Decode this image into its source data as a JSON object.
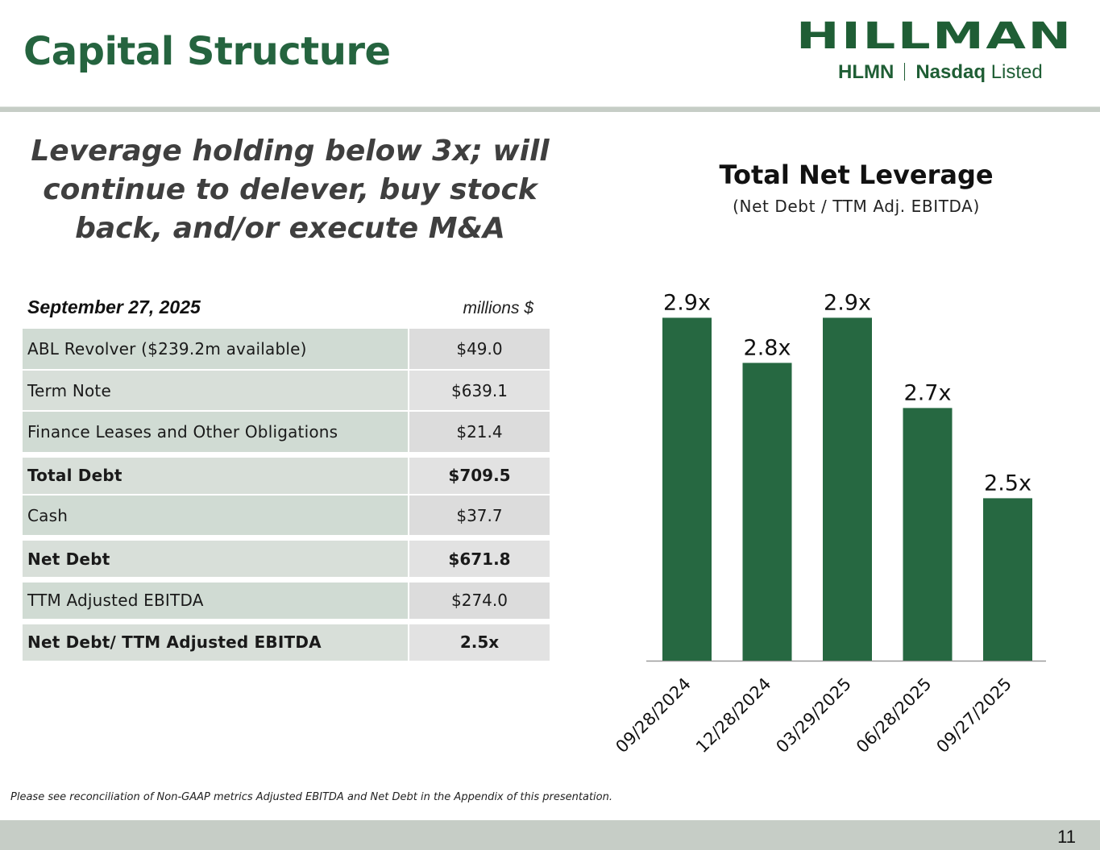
{
  "header": {
    "title": "Capital Structure",
    "logo": {
      "wordmark": "HILLMAN",
      "ticker": "HLMN",
      "exchange": "Nasdaq",
      "exchange_suffix": "Listed"
    }
  },
  "headline": "Leverage holding below 3x; will continue to delever, buy stock back, and/or execute M&A",
  "capital_table": {
    "date": "September 27, 2025",
    "units": "millions $",
    "rows": [
      {
        "label": "ABL Revolver ($239.2m available)",
        "value": "$49.0",
        "bold": false
      },
      {
        "label": "Term Note",
        "value": "$639.1",
        "bold": false
      },
      {
        "label": "Finance Leases and Other Obligations",
        "value": "$21.4",
        "bold": false
      },
      {
        "label": "Total Debt",
        "value": "$709.5",
        "bold": true
      },
      {
        "label": "Cash",
        "value": "$37.7",
        "bold": false
      },
      {
        "label": "Net Debt",
        "value": "$671.8",
        "bold": true
      },
      {
        "label": "TTM Adjusted EBITDA",
        "value": "$274.0",
        "bold": false
      },
      {
        "label": "Net Debt/ TTM Adjusted EBITDA",
        "value": "2.5x",
        "bold": true
      }
    ]
  },
  "chart_data": {
    "type": "bar",
    "title": "Total Net Leverage",
    "subtitle": "(Net Debt / TTM Adj. EBITDA)",
    "categories": [
      "09/28/2024",
      "12/28/2024",
      "03/29/2025",
      "06/28/2025",
      "09/27/2025"
    ],
    "values": [
      2.9,
      2.8,
      2.9,
      2.7,
      2.5
    ],
    "value_labels": [
      "2.9x",
      "2.8x",
      "2.9x",
      "2.7x",
      "2.5x"
    ],
    "bar_color": "#266841",
    "xlabel": "",
    "ylabel": "",
    "ylim": [
      2.14,
      3.0
    ],
    "grid": false,
    "legend": "none"
  },
  "footnote": "Please see reconciliation of Non-GAAP metrics Adjusted EBITDA and Net Debt in the Appendix of this presentation.",
  "footer": {
    "page_number": "11"
  }
}
